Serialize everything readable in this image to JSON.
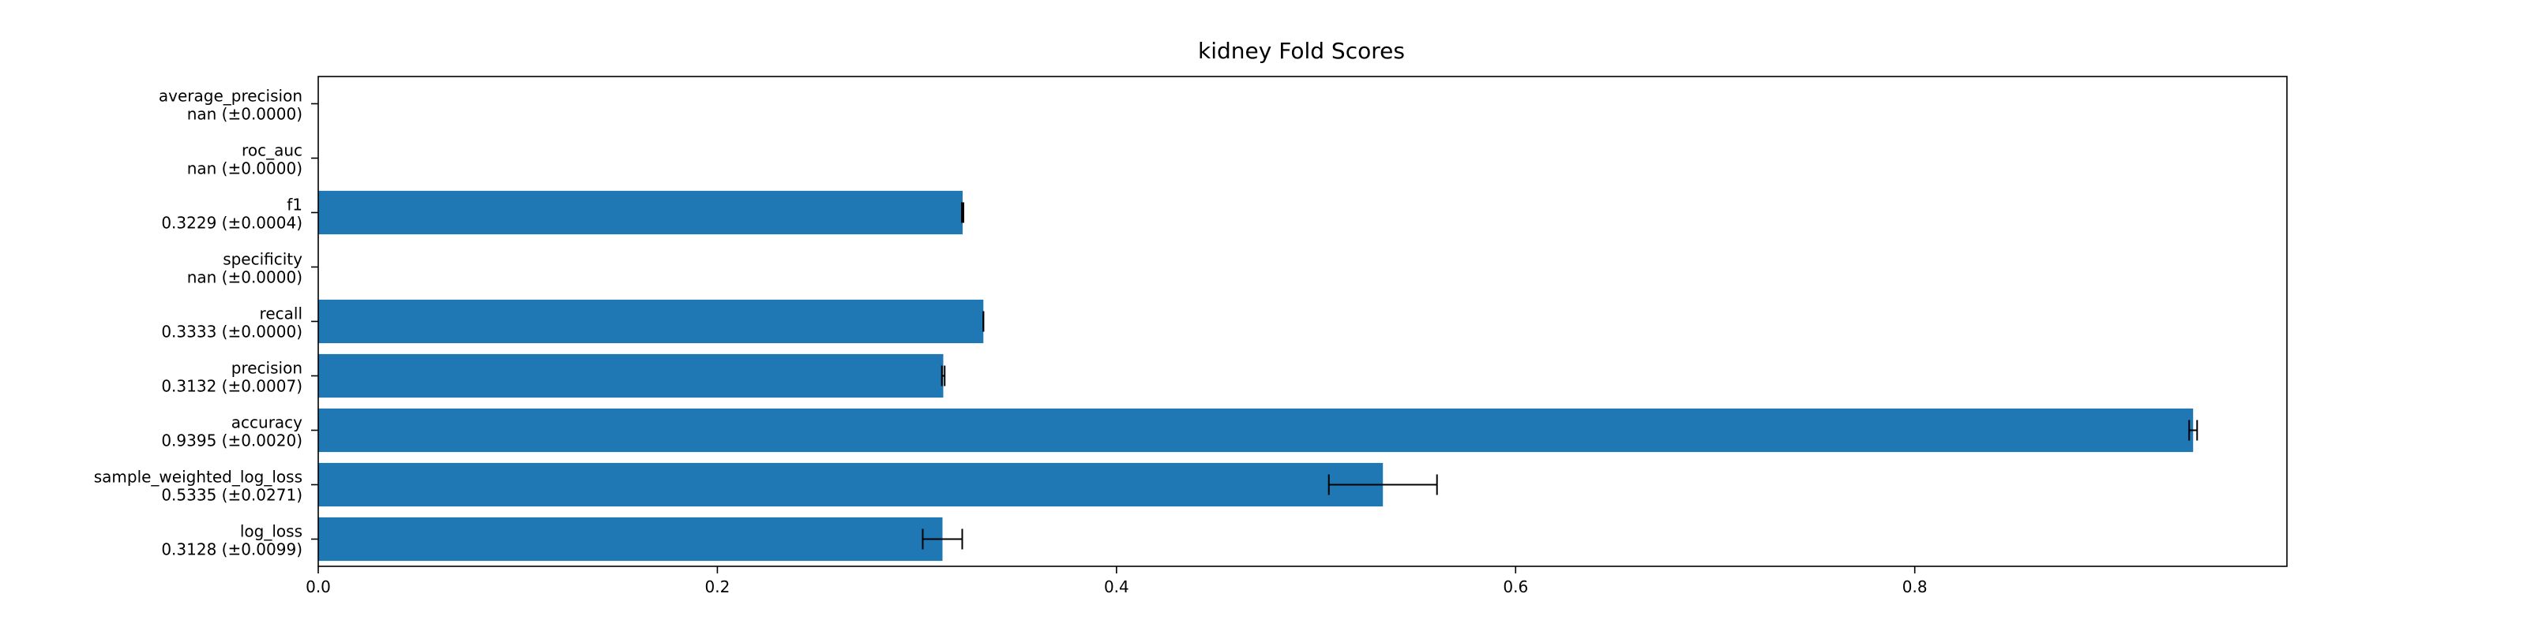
{
  "chart_data": {
    "type": "bar",
    "orientation": "horizontal",
    "title": "kidney Fold Scores",
    "xlabel": "",
    "ylabel": "",
    "xlim": [
      0,
      0.9865
    ],
    "grid": false,
    "bar_color": "#1f77b4",
    "errorbar_color": "#000000",
    "x_ticks": [
      "0.0",
      "0.2",
      "0.4",
      "0.6",
      "0.8"
    ],
    "x_tick_values": [
      0,
      0.2,
      0.4,
      0.6,
      0.8
    ],
    "categories": [
      {
        "name": "average_precision",
        "label": "nan (±0.0000)",
        "value": null,
        "error": 0.0
      },
      {
        "name": "roc_auc",
        "label": "nan (±0.0000)",
        "value": null,
        "error": 0.0
      },
      {
        "name": "f1",
        "label": "0.3229 (±0.0004)",
        "value": 0.3229,
        "error": 0.0004
      },
      {
        "name": "specificity",
        "label": "nan (±0.0000)",
        "value": null,
        "error": 0.0
      },
      {
        "name": "recall",
        "label": "0.3333 (±0.0000)",
        "value": 0.3333,
        "error": 0.0
      },
      {
        "name": "precision",
        "label": "0.3132 (±0.0007)",
        "value": 0.3132,
        "error": 0.0007
      },
      {
        "name": "accuracy",
        "label": "0.9395 (±0.0020)",
        "value": 0.9395,
        "error": 0.002
      },
      {
        "name": "sample_weighted_log_loss",
        "label": "0.5335 (±0.0271)",
        "value": 0.5335,
        "error": 0.0271
      },
      {
        "name": "log_loss",
        "label": "0.3128 (±0.0099)",
        "value": 0.3128,
        "error": 0.0099
      }
    ]
  }
}
